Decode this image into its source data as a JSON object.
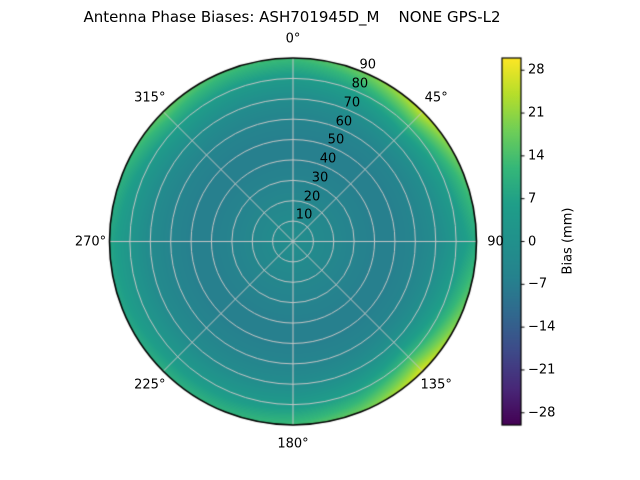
{
  "chart_data": {
    "type": "heatmap",
    "projection": "polar",
    "title": "Antenna Phase Biases: ASH701945D_M    NONE GPS-L2",
    "angular_ticks": [
      {
        "azimuth_deg": 0,
        "label": "0°"
      },
      {
        "azimuth_deg": 45,
        "label": "45°"
      },
      {
        "azimuth_deg": 90,
        "label": "90"
      },
      {
        "azimuth_deg": 135,
        "label": "135°"
      },
      {
        "azimuth_deg": 180,
        "label": "180°"
      },
      {
        "azimuth_deg": 225,
        "label": "225°"
      },
      {
        "azimuth_deg": 270,
        "label": "270°"
      },
      {
        "azimuth_deg": 315,
        "label": "315°"
      }
    ],
    "radial_ticks": [
      {
        "value": 10,
        "label": "10"
      },
      {
        "value": 20,
        "label": "20"
      },
      {
        "value": 30,
        "label": "30"
      },
      {
        "value": 40,
        "label": "40"
      },
      {
        "value": 50,
        "label": "50"
      },
      {
        "value": 60,
        "label": "60"
      },
      {
        "value": 70,
        "label": "70"
      },
      {
        "value": 80,
        "label": "80"
      },
      {
        "value": 90,
        "label": "90"
      }
    ],
    "radial_max": 90,
    "radial_label_angle_deg": 23,
    "theta_zero_location": "top",
    "theta_direction": "clockwise",
    "grid": true,
    "grid_color": "#c6c6c6",
    "outline_color": "#000000",
    "colorbar": {
      "label": "Bias (mm)",
      "ticks": [
        {
          "value": 28,
          "label": "28"
        },
        {
          "value": 21,
          "label": "21"
        },
        {
          "value": 14,
          "label": "14"
        },
        {
          "value": 7,
          "label": "7"
        },
        {
          "value": 0,
          "label": "0"
        },
        {
          "value": -7,
          "label": "−7"
        },
        {
          "value": -14,
          "label": "−14"
        },
        {
          "value": -21,
          "label": "−21"
        },
        {
          "value": -28,
          "label": "−28"
        }
      ],
      "vmin": -30,
      "vmax": 30
    },
    "colormap": {
      "name": "viridis",
      "stops": [
        "#440154",
        "#482878",
        "#3e4a89",
        "#31688e",
        "#26828e",
        "#21918c",
        "#1f9e89",
        "#35b779",
        "#6ece58",
        "#b5de2b",
        "#fde725"
      ]
    },
    "field": {
      "units": "mm",
      "radial_profile": {
        "r_deg": [
          0,
          10,
          20,
          30,
          40,
          50,
          60,
          70,
          80,
          90
        ],
        "bias_mm": [
          -1.5,
          -2.5,
          -4,
          -5.5,
          -6.5,
          -6.5,
          -5,
          -2.5,
          2.5,
          9
        ]
      },
      "rim_bias_by_azimuth": {
        "azimuth_deg": [
          0,
          22.5,
          45,
          67.5,
          90,
          112.5,
          135,
          157.5,
          180,
          202.5,
          225,
          247.5,
          270,
          292.5,
          315,
          337.5
        ],
        "bias_mm": [
          13,
          18,
          26,
          16,
          9,
          18,
          28,
          18,
          13,
          11,
          10,
          8,
          8,
          11,
          17,
          14
        ]
      },
      "edge_blend_start_r_deg": 55
    }
  }
}
